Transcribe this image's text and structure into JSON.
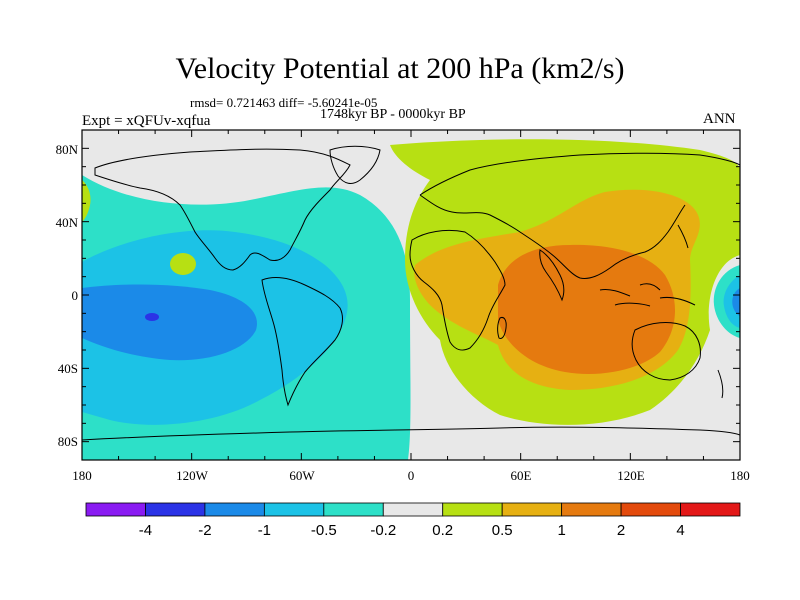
{
  "title": "Velocity Potential at 200 hPa (km2/s)",
  "stats": "rmsd= 0.721463 diff= -5.60241e-05",
  "period": "1748kyr BP - 0000kyr BP",
  "experiment": "Expt = xQFUv-xqfua",
  "season": "ANN",
  "x_ticks": [
    "180",
    "120W",
    "60W",
    "0",
    "60E",
    "120E",
    "180"
  ],
  "y_ticks": [
    "80N",
    "40N",
    "0",
    "40S",
    "80S"
  ],
  "colorbar": {
    "colors": [
      "#8a1bf2",
      "#2b33e6",
      "#1b8ae8",
      "#1cc2e6",
      "#2de0c8",
      "#e8e8e8",
      "#b7e013",
      "#e6b012",
      "#e57a0f",
      "#e34a0c",
      "#e31818"
    ],
    "labels": [
      "-4",
      "-2",
      "-1",
      "-0.5",
      "-0.2",
      "0.2",
      "0.5",
      "1",
      "2",
      "4"
    ]
  },
  "chart_data": {
    "type": "heatmap",
    "title": "Velocity Potential at 200 hPa (km2/s)",
    "projection": "cylindrical equidistant",
    "lon_range": [
      -180,
      180
    ],
    "lat_range": [
      -90,
      90
    ],
    "contour_levels": [
      -4,
      -2,
      -1,
      -0.5,
      -0.2,
      0.2,
      0.5,
      1,
      2,
      4
    ],
    "features": [
      {
        "region": "Indian Ocean / Maritime Continent center",
        "level": "1 to 2"
      },
      {
        "region": "Africa, Eurasia, western Pacific, Southern Ocean south of Australia",
        "level": "0.5 to 1"
      },
      {
        "region": "Arctic, northern Eurasia, Australia surroundings, South Atlantic edge",
        "level": "0.2 to 0.5"
      },
      {
        "region": "eastern tropical Pacific",
        "level": "-1 to -0.5"
      },
      {
        "region": "South America, North America, Atlantic",
        "level": "-0.5 to -0.2"
      },
      {
        "region": "eastern Pacific core",
        "level": "-2 to -1"
      }
    ]
  }
}
